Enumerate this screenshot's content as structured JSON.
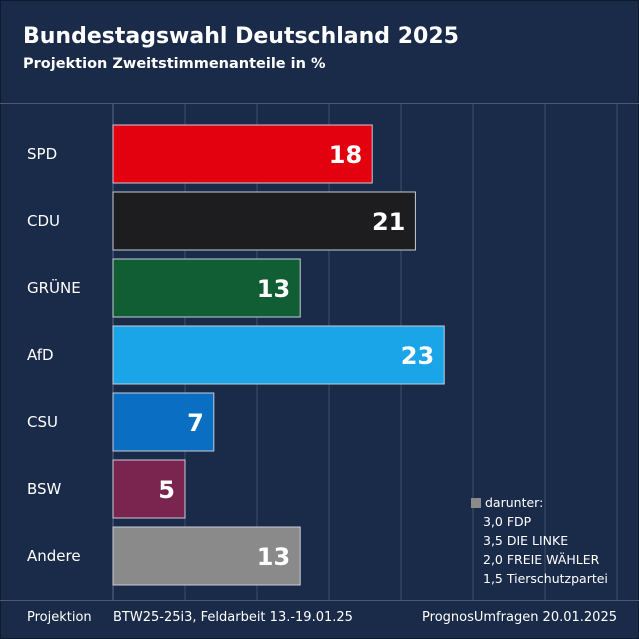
{
  "title": "Bundestagswahl Deutschland 2025",
  "subtitle": "Projektion Zweitstimmenanteile in %",
  "chart_data": {
    "type": "bar",
    "orientation": "horizontal",
    "categories": [
      "SPD",
      "CDU",
      "GRÜNE",
      "AfD",
      "CSU",
      "BSW",
      "Andere"
    ],
    "values": [
      18,
      21,
      13,
      23,
      7,
      5,
      13
    ],
    "value_labels": [
      "18",
      "21",
      "13",
      "23",
      "7",
      "5",
      "13"
    ],
    "colors": [
      "#e3000f",
      "#1d1d1f",
      "#125e34",
      "#1aa5e8",
      "#0a6fc2",
      "#7a2450",
      "#8a8a8a"
    ],
    "xlim": [
      0,
      35
    ],
    "grid": true
  },
  "note": {
    "title": "darunter:",
    "lines": [
      "3,0 FDP",
      "3,5 DIE LINKE",
      "2,0 FREIE WÄHLER",
      "1,5 Tierschutzpartei"
    ]
  },
  "footer": {
    "label": "Projektion",
    "source": "BTW25-25i3, Feldarbeit 13.-19.01.25",
    "publisher": "PrognosUmfragen 20.01.2025"
  }
}
